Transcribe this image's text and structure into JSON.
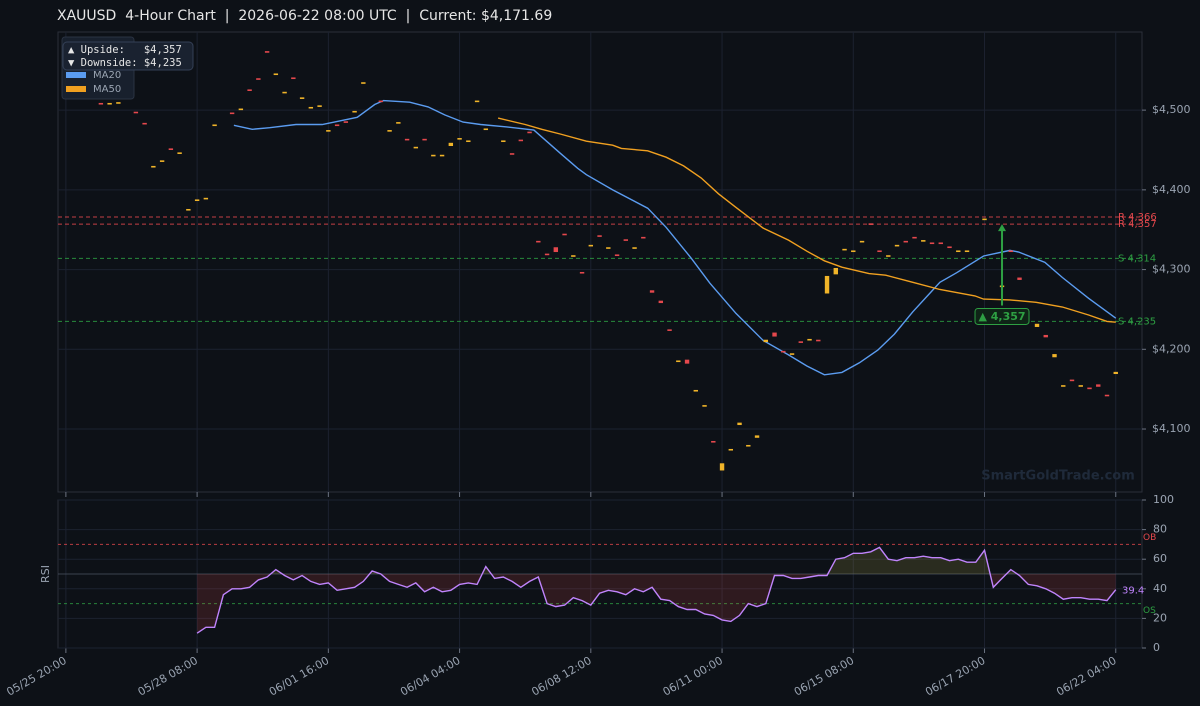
{
  "chart_data": [
    {
      "type": "candlestick",
      "title": "XAUUSD  4-Hour Chart  |  2026-06-22 08:00 UTC  |  Current: $4,171.69",
      "xlim": [
        -0.9,
        123
      ],
      "xticks": [
        {
          "value": 0,
          "label": "05/25 20:00"
        },
        {
          "value": 15,
          "label": "05/28 08:00"
        },
        {
          "value": 30,
          "label": "06/01 16:00"
        },
        {
          "value": 45,
          "label": "06/04 04:00"
        },
        {
          "value": 60,
          "label": "06/08 12:00"
        },
        {
          "value": 75,
          "label": "06/11 00:00"
        },
        {
          "value": 90,
          "label": "06/15 08:00"
        },
        {
          "value": 105,
          "label": "06/17 20:00"
        },
        {
          "value": 120,
          "label": "06/22 04:00"
        }
      ],
      "ylim": [
        4021,
        4598
      ],
      "yticks": [
        {
          "value": 4100,
          "label": "$4,100"
        },
        {
          "value": 4200,
          "label": "$4,200"
        },
        {
          "value": 4300,
          "label": "$4,300"
        },
        {
          "value": 4400,
          "label": "$4,400"
        },
        {
          "value": 4500,
          "label": "$4,500"
        }
      ],
      "grid": true,
      "up_color": "#f0b429",
      "down_color": "#e5484d",
      "x": [
        4,
        5,
        6,
        8,
        9,
        10,
        11,
        12,
        13,
        14,
        15,
        16,
        17,
        19,
        20,
        21,
        22,
        23,
        24,
        25,
        26,
        27,
        28,
        29,
        30,
        31,
        32,
        33,
        34,
        36,
        37,
        38,
        39,
        40,
        41,
        42,
        43,
        44,
        45,
        46,
        47,
        48,
        50,
        51,
        52,
        53,
        54,
        55,
        56,
        57,
        58,
        59,
        60,
        61,
        62,
        63,
        64,
        65,
        66,
        67,
        68,
        69,
        70,
        71,
        72,
        73,
        74,
        75,
        76,
        77,
        78,
        79,
        80,
        81,
        82,
        83,
        84,
        85,
        86,
        87,
        88,
        89,
        90,
        91,
        92,
        93,
        94,
        95,
        96,
        97,
        98,
        99,
        100,
        101,
        102,
        103,
        105,
        107,
        108,
        109,
        111,
        112,
        113,
        114,
        115,
        116,
        117,
        118,
        119,
        120
      ],
      "open": [
        4509,
        4507,
        4508,
        4498,
        4484,
        4428,
        4435,
        4452,
        4445,
        4374,
        4386,
        4388,
        4480,
        4497,
        4500,
        4526,
        4540,
        4574,
        4544,
        4521,
        4541,
        4514,
        4502,
        4504,
        4473,
        4482,
        4486,
        4497,
        4533,
        4512,
        4473,
        4483,
        4464,
        4452,
        4464,
        4442,
        4442,
        4455,
        4463,
        4460,
        4510,
        4475,
        4460,
        4446,
        4463,
        4473,
        4336,
        4320,
        4328,
        4345,
        4316,
        4297,
        4329,
        4343,
        4326,
        4319,
        4338,
        4326,
        4341,
        4274,
        4261,
        4225,
        4184,
        4187,
        4147,
        4128,
        4085,
        4048,
        4073,
        4105,
        4078,
        4089,
        4209,
        4221,
        4198,
        4193,
        4210,
        4211,
        4212,
        4270,
        4294,
        4324,
        4322,
        4334,
        4358,
        4324,
        4316,
        4329,
        4336,
        4341,
        4335,
        4334,
        4334,
        4329,
        4322,
        4322,
        4362,
        4278,
        4324,
        4290,
        4228,
        4218,
        4190,
        4153,
        4162,
        4153,
        4152,
        4156,
        4143,
        4169
      ],
      "close": [
        4507,
        4509,
        4510,
        4496,
        4482,
        4430,
        4437,
        4450,
        4447,
        4376,
        4388,
        4390,
        4482,
        4495,
        4502,
        4524,
        4538,
        4572,
        4546,
        4523,
        4539,
        4516,
        4504,
        4506,
        4475,
        4480,
        4484,
        4499,
        4535,
        4510,
        4475,
        4485,
        4462,
        4454,
        4462,
        4444,
        4444,
        4459,
        4465,
        4462,
        4512,
        4477,
        4462,
        4444,
        4461,
        4471,
        4334,
        4318,
        4322,
        4343,
        4318,
        4295,
        4331,
        4341,
        4328,
        4317,
        4336,
        4328,
        4339,
        4271,
        4258,
        4223,
        4186,
        4182,
        4149,
        4130,
        4083,
        4057,
        4075,
        4108,
        4080,
        4092,
        4212,
        4216,
        4196,
        4195,
        4208,
        4213,
        4210,
        4292,
        4302,
        4326,
        4324,
        4336,
        4356,
        4322,
        4318,
        4331,
        4334,
        4339,
        4337,
        4332,
        4332,
        4327,
        4324,
        4324,
        4364,
        4280,
        4322,
        4287,
        4232,
        4215,
        4194,
        4155,
        4160,
        4155,
        4150,
        4153,
        4141,
        4171.69
      ],
      "series": [
        {
          "name": "MA20",
          "color": "#5b9cf0",
          "x": [
            19.2,
            21.3,
            23.3,
            26.3,
            29.3,
            33.3,
            35.3,
            36.3,
            39.3,
            41.4,
            43.3,
            45.4,
            47.4,
            50.4,
            53.5,
            56.5,
            58.5,
            59.5,
            62.5,
            66.5,
            68.6,
            71.5,
            73.6,
            76.6,
            79.7,
            82.6,
            84.7,
            86.7,
            88.7,
            90.7,
            92.8,
            94.7,
            96.8,
            98.9,
            99.9,
            101.8,
            104.9,
            107.9,
            108.9,
            111.9,
            113.9,
            116.9,
            120
          ],
          "values": [
            4481,
            4476,
            4478,
            4482,
            4482,
            4491,
            4507,
            4512,
            4510,
            4504,
            4494,
            4485,
            4482,
            4479,
            4475,
            4446,
            4427,
            4419,
            4400,
            4377,
            4353,
            4314,
            4283,
            4245,
            4211,
            4193,
            4179,
            4168,
            4171,
            4183,
            4199,
            4219,
            4247,
            4272,
            4284,
            4296,
            4317,
            4324,
            4322,
            4309,
            4290,
            4264,
            4239
          ]
        },
        {
          "name": "MA50",
          "color": "#f0a020",
          "x": [
            49.4,
            52.5,
            54.4,
            56.5,
            59.5,
            62.5,
            63.5,
            66.5,
            68.6,
            70.6,
            72.6,
            74.6,
            76.6,
            79.7,
            82.6,
            84.7,
            86.7,
            88.7,
            91.8,
            93.7,
            96.8,
            99.9,
            103.9,
            104.9,
            107.9,
            110.9,
            113.9,
            116.9,
            119,
            120
          ],
          "values": [
            4490,
            4482,
            4476,
            4470,
            4461,
            4456,
            4452,
            4449,
            4441,
            4430,
            4415,
            4395,
            4378,
            4352,
            4337,
            4323,
            4311,
            4303,
            4295,
            4293,
            4284,
            4275,
            4267,
            4263,
            4262,
            4259,
            4253,
            4243,
            4235,
            4234
          ]
        }
      ],
      "levels": [
        {
          "value": 4366,
          "label": "R 4,366",
          "color": "#e5484d"
        },
        {
          "value": 4357,
          "label": "R 4,357",
          "color": "#e5484d"
        },
        {
          "value": 4314,
          "label": "S 4,314",
          "color": "#2ea043"
        },
        {
          "value": 4235,
          "label": "S 4,235",
          "color": "#2ea043"
        }
      ],
      "target": {
        "x": 107,
        "from": 4255,
        "to": 4357,
        "label": "▲ 4,357",
        "color": "#2ea043"
      },
      "upside": "▲ Upside:   $4,357",
      "downside": "▼ Downside: $4,235",
      "watermark": "SmartGoldTrade.com"
    },
    {
      "type": "line",
      "ylabel": "RSI",
      "color": "#c084fc",
      "xlim": [
        -0.9,
        123
      ],
      "ylim": [
        0,
        100
      ],
      "yticks": [
        0,
        20,
        40,
        60,
        80,
        100
      ],
      "grid": true,
      "midline": 50,
      "levels": [
        {
          "value": 70,
          "label": "OB",
          "color": "#e5484d"
        },
        {
          "value": 30,
          "label": "OS",
          "color": "#2ea043"
        }
      ],
      "x": [
        15,
        16,
        17,
        18,
        19,
        20,
        21,
        22,
        23,
        24,
        25,
        26,
        27,
        28,
        29,
        30,
        31,
        32,
        33,
        34,
        35,
        36,
        37,
        38,
        39,
        40,
        41,
        42,
        43,
        44,
        45,
        46,
        47,
        48,
        49,
        50,
        51,
        52,
        53,
        54,
        55,
        56,
        57,
        58,
        59,
        60,
        61,
        62,
        63,
        64,
        65,
        66,
        67,
        68,
        69,
        70,
        71,
        72,
        73,
        74,
        75,
        76,
        77,
        78,
        79,
        80,
        81,
        82,
        83,
        84,
        85,
        86,
        87,
        88,
        89,
        90,
        91,
        92,
        93,
        94,
        95,
        96,
        97,
        98,
        99,
        100,
        101,
        102,
        103,
        104,
        105,
        106,
        107,
        108,
        109,
        110,
        111,
        112,
        113,
        114,
        115,
        116,
        117,
        118,
        119,
        120
      ],
      "values": [
        10,
        14,
        14,
        36,
        40,
        40,
        41,
        46,
        48,
        53,
        49,
        46,
        49,
        45,
        43,
        44,
        39,
        40,
        41,
        45,
        52,
        50,
        45,
        43,
        41,
        44,
        38,
        41,
        38,
        39,
        43,
        44,
        43,
        55,
        47,
        48,
        45,
        41,
        45,
        48,
        30,
        28,
        29,
        34,
        32,
        29,
        37,
        39,
        38,
        36,
        40,
        38,
        41,
        33,
        32,
        28,
        26,
        26,
        23,
        22,
        19,
        18,
        22,
        30,
        28,
        30,
        49,
        49,
        47,
        47,
        48,
        49,
        49,
        60,
        61,
        64,
        64,
        65,
        68,
        60,
        59,
        61,
        61,
        62,
        61,
        61,
        59,
        60,
        58,
        58,
        66,
        41,
        47,
        53,
        49,
        43,
        42,
        40,
        37,
        33,
        34,
        34,
        33,
        33,
        32,
        39.4
      ]
    }
  ]
}
